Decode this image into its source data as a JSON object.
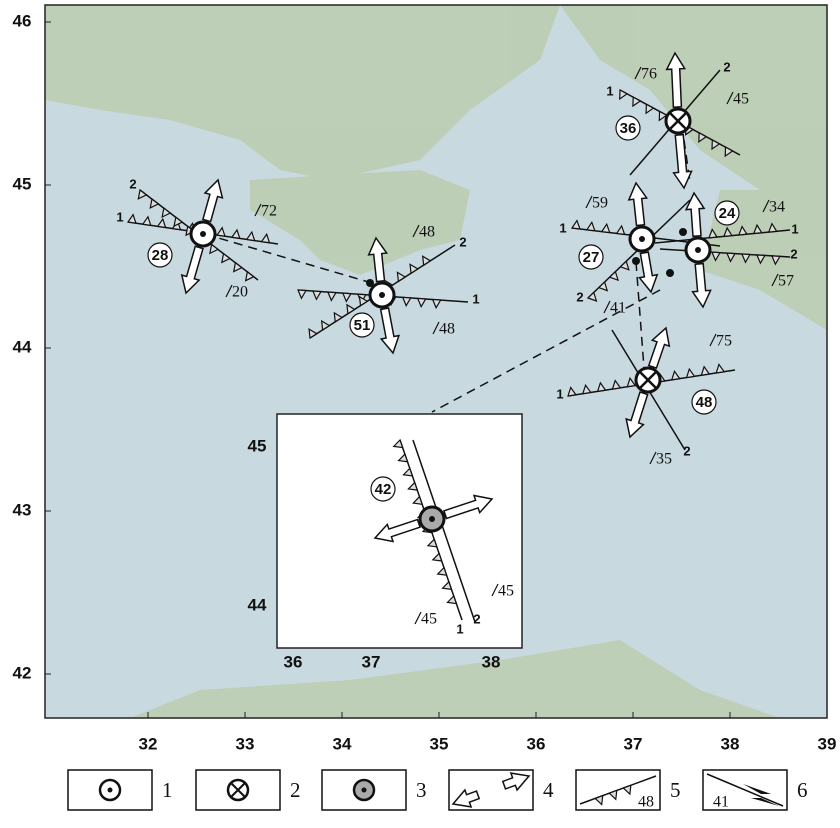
{
  "map": {
    "xticks": [
      32,
      33,
      34,
      35,
      36,
      37,
      38,
      39
    ],
    "yticks": [
      42,
      43,
      44,
      45,
      46
    ]
  },
  "events": [
    {
      "id": "28",
      "planes": [
        "1",
        "2"
      ],
      "dips": [
        "72",
        "20"
      ]
    },
    {
      "id": "51",
      "planes": [
        "1",
        "2"
      ],
      "dips": [
        "48",
        "48"
      ]
    },
    {
      "id": "36",
      "planes": [
        "1",
        "2"
      ],
      "dips": [
        "76",
        "45"
      ]
    },
    {
      "id": "27",
      "planes": [
        "1",
        "2"
      ],
      "dips": [
        "59",
        "41"
      ]
    },
    {
      "id": "24",
      "planes": [
        "1",
        "2"
      ],
      "dips": [
        "34",
        "57"
      ]
    },
    {
      "id": "48",
      "planes": [
        "1",
        "2"
      ],
      "dips": [
        "75",
        "35"
      ]
    }
  ],
  "inset": {
    "xticks": [
      36,
      37,
      38
    ],
    "yticks": [
      45,
      44
    ],
    "event": {
      "id": "42",
      "planes": [
        "1",
        "2"
      ],
      "dips": [
        "45",
        "45"
      ]
    }
  },
  "legend": [
    {
      "label": "1"
    },
    {
      "label": "2"
    },
    {
      "label": "3"
    },
    {
      "label": "4"
    },
    {
      "label": "5",
      "dip": "48"
    },
    {
      "label": "6",
      "dip": "41"
    }
  ]
}
